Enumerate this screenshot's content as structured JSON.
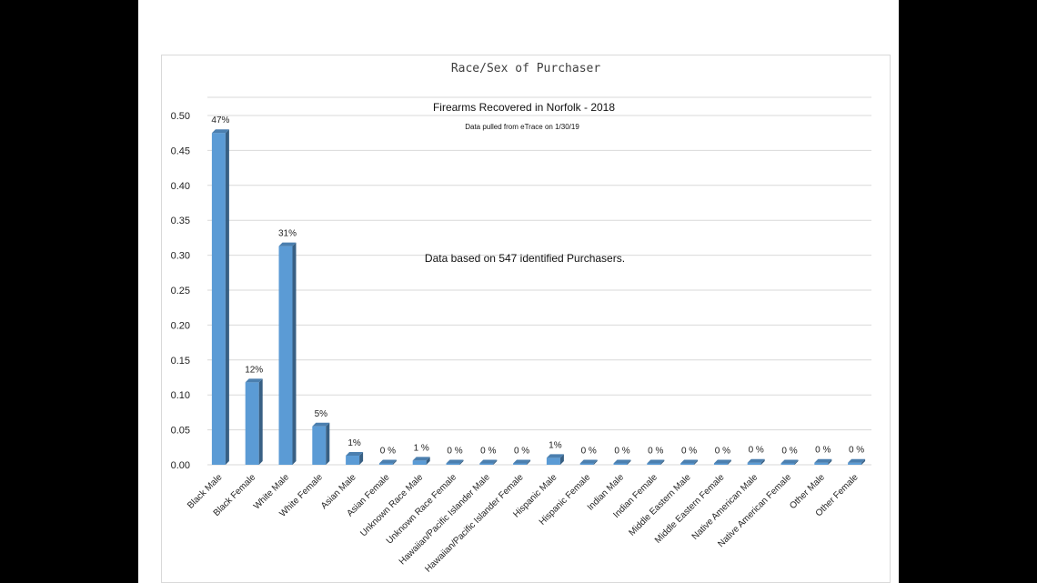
{
  "chart_data": {
    "type": "bar",
    "title": "Race/Sex of Purchaser",
    "subtitle": "Firearms Recovered in Norfolk - 2018",
    "source_note": "Data pulled from eTrace on 1/30/19",
    "annotation": "Data based on 547 identified Purchasers.",
    "xlabel": "",
    "ylabel": "",
    "ylim": [
      0,
      0.5
    ],
    "yticks": [
      "0.00",
      "0.05",
      "0.10",
      "0.15",
      "0.20",
      "0.25",
      "0.30",
      "0.35",
      "0.40",
      "0.45",
      "0.50"
    ],
    "grid": true,
    "legend": "none",
    "bar_color": "#5b9bd5",
    "categories": [
      "Black Male",
      "Black Female",
      "White Male",
      "White Female",
      "Asian Male",
      "Asian Female",
      "Unknown Race Male",
      "Unknown Race Female",
      "Hawaiian/Pacific Islander Male",
      "Hawaiian/Pacific Islander Female",
      "Hispanic Male",
      "Hispanic Female",
      "Indian Male",
      "Indian Female",
      "Middle Eastern Male",
      "Middle Eastern Female",
      "Native American Male",
      "Native American Female",
      "Other Male",
      "Other Female"
    ],
    "values": [
      0.475,
      0.118,
      0.313,
      0.055,
      0.013,
      0.002,
      0.006,
      0.002,
      0.002,
      0.002,
      0.01,
      0.002,
      0.002,
      0.002,
      0.002,
      0.002,
      0.003,
      0.002,
      0.003,
      0.003
    ],
    "data_labels": [
      "47%",
      "12%",
      "31%",
      "5%",
      "1%",
      "0 %",
      "1 %",
      "0 %",
      "0 %",
      "0 %",
      "1%",
      "0 %",
      "0 %",
      "0 %",
      "0 %",
      "0 %",
      "0 %",
      "0 %",
      "0 %",
      "0 %"
    ]
  }
}
